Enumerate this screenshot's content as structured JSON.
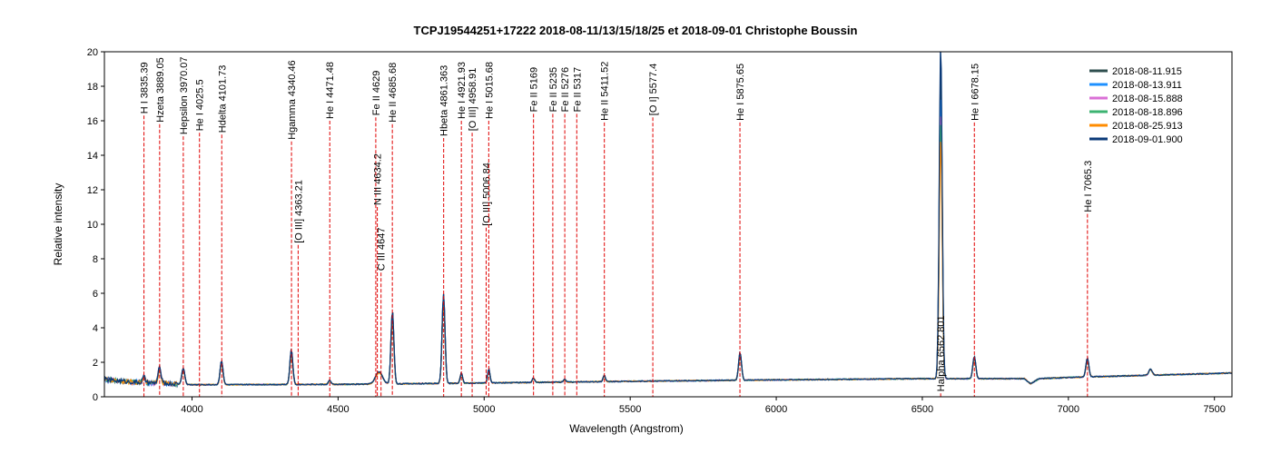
{
  "chart_data": {
    "type": "line",
    "title": "TCPJ19544251+17222   2018-08-11/13/15/18/25 et 2018-09-01   Christophe Boussin",
    "xlabel": "Wavelength (Angstrom)",
    "ylabel": "Relative intensity",
    "xlim": [
      3700,
      7560
    ],
    "ylim": [
      0,
      20
    ],
    "xticks": [
      4000,
      4500,
      5000,
      5500,
      6000,
      6500,
      7000,
      7500
    ],
    "yticks": [
      0,
      2,
      4,
      6,
      8,
      10,
      12,
      14,
      16,
      18,
      20
    ],
    "legend_position": "top-right",
    "series": [
      {
        "name": "2018-08-11.915",
        "color": "#2f4f4f",
        "halpha": 19.0,
        "scale": 1.0
      },
      {
        "name": "2018-08-13.911",
        "color": "#1e90ff",
        "halpha": 17.5,
        "scale": 0.97
      },
      {
        "name": "2018-08-15.888",
        "color": "#da70d6",
        "halpha": 16.5,
        "scale": 0.95
      },
      {
        "name": "2018-08-18.896",
        "color": "#3cb371",
        "halpha": 16.0,
        "scale": 0.93
      },
      {
        "name": "2018-08-25.913",
        "color": "#ff8c00",
        "halpha": 15.0,
        "scale": 0.9
      },
      {
        "name": "2018-09-01.900",
        "color": "#0b3a78",
        "halpha": 20.5,
        "scale": 1.0
      }
    ],
    "continuum": [
      [
        3700,
        1.0
      ],
      [
        3800,
        0.85
      ],
      [
        4000,
        0.7
      ],
      [
        4500,
        0.72
      ],
      [
        5000,
        0.8
      ],
      [
        5500,
        0.9
      ],
      [
        6000,
        0.98
      ],
      [
        6500,
        1.05
      ],
      [
        6850,
        1.05
      ],
      [
        6870,
        0.75
      ],
      [
        6900,
        1.05
      ],
      [
        7000,
        1.12
      ],
      [
        7500,
        1.35
      ],
      [
        7560,
        1.38
      ]
    ],
    "peaks": [
      [
        3835,
        0.35,
        4
      ],
      [
        3889,
        0.9,
        5
      ],
      [
        3970,
        0.95,
        5
      ],
      [
        4101,
        1.4,
        5
      ],
      [
        4340,
        2.0,
        5
      ],
      [
        4471,
        0.25,
        4
      ],
      [
        4640,
        0.7,
        12
      ],
      [
        4686,
        4.2,
        5
      ],
      [
        4861,
        5.2,
        5
      ],
      [
        4922,
        0.6,
        4
      ],
      [
        5016,
        0.8,
        4
      ],
      [
        5169,
        0.25,
        4
      ],
      [
        5276,
        0.15,
        4
      ],
      [
        5411,
        0.35,
        4
      ],
      [
        5876,
        1.6,
        5
      ],
      [
        6678,
        1.3,
        5
      ],
      [
        7065,
        1.1,
        5
      ],
      [
        7281,
        0.35,
        6
      ]
    ],
    "annotations": [
      {
        "label": "H I 3835.39",
        "x": 3835.39,
        "y": 16.3
      },
      {
        "label": "Hzeta 3889.05",
        "x": 3889.05,
        "y": 15.8
      },
      {
        "label": "Hepsilon 3970.07",
        "x": 3970.07,
        "y": 15.1
      },
      {
        "label": "He I 4025.5",
        "x": 4025.5,
        "y": 15.3
      },
      {
        "label": "Hdelta 4101.73",
        "x": 4101.73,
        "y": 15.2
      },
      {
        "label": "Hgamma 4340.46",
        "x": 4340.46,
        "y": 14.8
      },
      {
        "label": "[O III] 4363.21",
        "x": 4363.21,
        "y": 8.8
      },
      {
        "label": "He I 4471.48",
        "x": 4471.48,
        "y": 16.0
      },
      {
        "label": "Fe II 4629",
        "x": 4629,
        "y": 16.2
      },
      {
        "label": "N III 4634.2",
        "x": 4634.2,
        "y": 11.0
      },
      {
        "label": "C III 4647",
        "x": 4647,
        "y": 7.2
      },
      {
        "label": "He II 4685.68",
        "x": 4685.68,
        "y": 15.8
      },
      {
        "label": "Hbeta 4861.363",
        "x": 4861.363,
        "y": 15.0
      },
      {
        "label": "He I 4921.93",
        "x": 4921.93,
        "y": 16.0
      },
      {
        "label": "[O III] 4958.91",
        "x": 4958.91,
        "y": 15.3
      },
      {
        "label": "[O III] 5006.84",
        "x": 5006.84,
        "y": 9.8
      },
      {
        "label": "He I 5015.68",
        "x": 5015.68,
        "y": 16.0
      },
      {
        "label": "Fe II 5169",
        "x": 5169,
        "y": 16.4
      },
      {
        "label": "Fe II 5235",
        "x": 5235,
        "y": 16.4
      },
      {
        "label": "Fe II 5276",
        "x": 5276,
        "y": 16.4
      },
      {
        "label": "Fe II 5317",
        "x": 5317,
        "y": 16.4
      },
      {
        "label": "He II 5411.52",
        "x": 5411.52,
        "y": 15.9
      },
      {
        "label": "[O I] 5577.4",
        "x": 5577.4,
        "y": 16.2
      },
      {
        "label": "He I 5875.65",
        "x": 5875.65,
        "y": 15.9
      },
      {
        "label": "Halpha 6562.801",
        "x": 6562.801,
        "y": 0.2
      },
      {
        "label": "He I 6678.15",
        "x": 6678.15,
        "y": 15.9
      },
      {
        "label": "He I 7065.3",
        "x": 7065.3,
        "y": 10.6
      }
    ]
  }
}
